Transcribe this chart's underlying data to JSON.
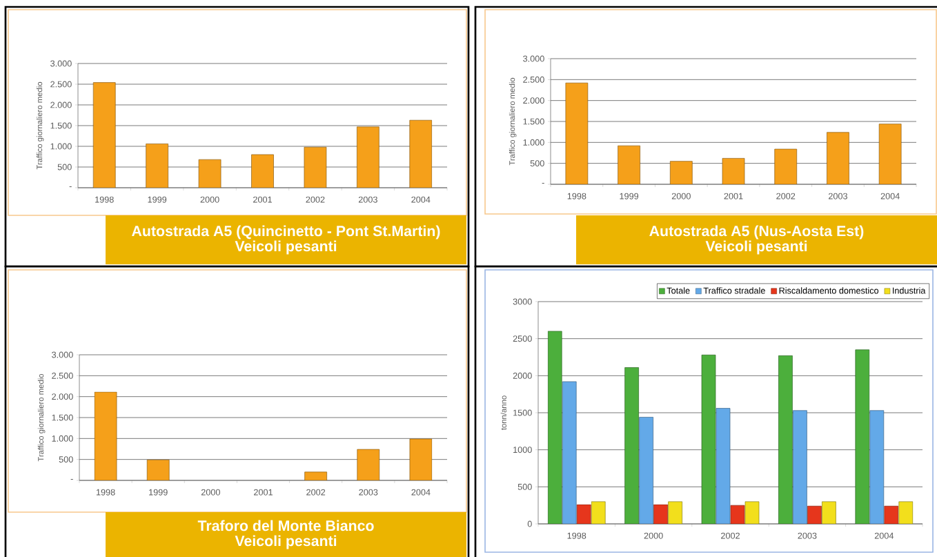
{
  "chart_data": [
    {
      "type": "bar",
      "title": "Autostrada A5 (Quincinetto - Pont St.Martin)",
      "subtitle": "Veicoli pesanti",
      "ylabel": "Traffico giornaliero medio",
      "categories": [
        "1998",
        "1999",
        "2000",
        "2001",
        "2002",
        "2003",
        "2004"
      ],
      "values": [
        2540,
        1060,
        680,
        800,
        980,
        1470,
        1630
      ],
      "color": "#f5a01a",
      "ylim": [
        0,
        3000
      ],
      "yticks": [
        {
          "value": 0,
          "label": "-"
        },
        500,
        {
          "value": 1000,
          "label": "1.000"
        },
        {
          "value": 1500,
          "label": "1.500"
        },
        {
          "value": 2000,
          "label": "2.000"
        },
        {
          "value": 2500,
          "label": "2.500"
        },
        {
          "value": 3000,
          "label": "3.000"
        }
      ],
      "grid": "y"
    },
    {
      "type": "bar",
      "title": "Autostrada A5 (Nus-Aosta Est)",
      "subtitle": "Veicoli pesanti",
      "ylabel": "Traffico giornaliero medio",
      "categories": [
        "1998",
        "1999",
        "2000",
        "2001",
        "2002",
        "2003",
        "2004"
      ],
      "values": [
        2420,
        920,
        550,
        620,
        840,
        1240,
        1440
      ],
      "color": "#f5a01a",
      "ylim": [
        0,
        3000
      ],
      "yticks": [
        {
          "value": 0,
          "label": "-"
        },
        500,
        {
          "value": 1000,
          "label": "1.000"
        },
        {
          "value": 1500,
          "label": "1.500"
        },
        {
          "value": 2000,
          "label": "2.000"
        },
        {
          "value": 2500,
          "label": "2.500"
        },
        {
          "value": 3000,
          "label": "3.000"
        }
      ],
      "grid": "y"
    },
    {
      "type": "bar",
      "title": "Traforo del Monte Bianco",
      "subtitle": "Veicoli pesanti",
      "ylabel": "Traffico giornaliero medio",
      "categories": [
        "1998",
        "1999",
        "2000",
        "2001",
        "2002",
        "2003",
        "2004"
      ],
      "values": [
        2110,
        490,
        null,
        null,
        200,
        740,
        990
      ],
      "color": "#f5a01a",
      "ylim": [
        0,
        3000
      ],
      "yticks": [
        {
          "value": 0,
          "label": "-"
        },
        500,
        {
          "value": 1000,
          "label": "1.000"
        },
        {
          "value": 1500,
          "label": "1.500"
        },
        {
          "value": 2000,
          "label": "2.000"
        },
        {
          "value": 2500,
          "label": "2.500"
        },
        {
          "value": 3000,
          "label": "3.000"
        }
      ],
      "grid": "y"
    },
    {
      "type": "bar",
      "ylabel": "tonn/anno",
      "categories": [
        "1998",
        "2000",
        "2002",
        "2003",
        "2004"
      ],
      "series": [
        {
          "name": "Totale",
          "color": "#4caf3c",
          "values": [
            2600,
            2110,
            2280,
            2270,
            2350
          ]
        },
        {
          "name": "Traffico stradale",
          "color": "#63a9e8",
          "values": [
            1920,
            1440,
            1560,
            1530,
            1530
          ]
        },
        {
          "name": "Riscaldamento domestico",
          "color": "#e6361c",
          "values": [
            260,
            260,
            250,
            240,
            240
          ]
        },
        {
          "name": "Industria",
          "color": "#f2df1c",
          "values": [
            300,
            300,
            300,
            300,
            300
          ]
        }
      ],
      "ylim": [
        0,
        3000
      ],
      "yticks": [
        0,
        500,
        1000,
        1500,
        2000,
        2500,
        3000
      ],
      "grid": "y",
      "legend": "top right"
    }
  ]
}
